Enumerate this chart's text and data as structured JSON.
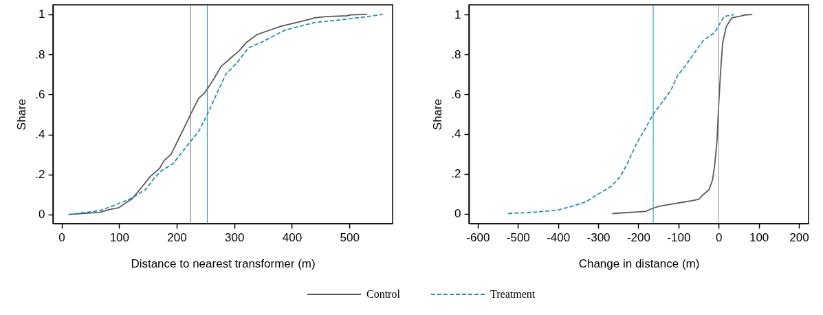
{
  "chart_data": [
    {
      "type": "line",
      "xlabel": "Distance to nearest transformer (m)",
      "ylabel": "Share",
      "legend": "bottom",
      "xlim": [
        -15,
        575
      ],
      "xticks": [
        0,
        100,
        200,
        300,
        400,
        500
      ],
      "ylim": [
        -0.045,
        1.048
      ],
      "yticks": [
        {
          "value": 0,
          "label": "0"
        },
        {
          "value": 0.2,
          "label": ".2"
        },
        {
          "value": 0.4,
          "label": ".4"
        },
        {
          "value": 0.6,
          "label": ".6"
        },
        {
          "value": 0.8,
          "label": ".8"
        },
        {
          "value": 1,
          "label": "1"
        }
      ],
      "ref_lines": [
        {
          "axis": "x",
          "value": 224,
          "color": "#707070"
        },
        {
          "axis": "x",
          "value": 253,
          "color": "#1a8fc0"
        }
      ],
      "series": [
        {
          "name": "Control",
          "color": "#5a5a5a",
          "line_style": "solid",
          "x": [
            12,
            67,
            83,
            99,
            123,
            143,
            154,
            170,
            178,
            190,
            202,
            214,
            224,
            238,
            249,
            265,
            277,
            293,
            309,
            321,
            340,
            360,
            380,
            400,
            420,
            440,
            459,
            495,
            503,
            531
          ],
          "values": [
            0,
            0.011,
            0.025,
            0.034,
            0.08,
            0.15,
            0.19,
            0.23,
            0.27,
            0.3,
            0.37,
            0.44,
            0.5,
            0.58,
            0.61,
            0.68,
            0.74,
            0.78,
            0.82,
            0.86,
            0.9,
            0.92,
            0.94,
            0.954,
            0.968,
            0.983,
            0.989,
            0.993,
            0.998,
            1
          ]
        },
        {
          "name": "Treatment",
          "color": "#1a8fc0",
          "line_style": "dashed",
          "x": [
            12,
            67,
            91,
            123,
            147,
            162,
            174,
            194,
            206,
            222,
            238,
            253,
            269,
            285,
            305,
            325,
            348,
            388,
            440,
            479,
            531,
            558
          ],
          "values": [
            0,
            0.02,
            0.045,
            0.083,
            0.128,
            0.186,
            0.22,
            0.255,
            0.3,
            0.358,
            0.415,
            0.5,
            0.6,
            0.7,
            0.76,
            0.834,
            0.862,
            0.922,
            0.96,
            0.971,
            0.989,
            1
          ]
        }
      ]
    },
    {
      "type": "line",
      "xlabel": "Change in distance (m)",
      "ylabel": "Share",
      "legend": "bottom",
      "xlim": [
        -622,
        224
      ],
      "xticks": [
        -600,
        -500,
        -400,
        -300,
        -200,
        -100,
        0,
        100,
        200
      ],
      "ylim": [
        -0.049,
        1.049
      ],
      "yticks": [
        {
          "value": 0,
          "label": "0"
        },
        {
          "value": 0.2,
          "label": ".2"
        },
        {
          "value": 0.4,
          "label": ".4"
        },
        {
          "value": 0.6,
          "label": ".6"
        },
        {
          "value": 0.8,
          "label": ".8"
        },
        {
          "value": 1,
          "label": "1"
        }
      ],
      "ref_lines": [
        {
          "axis": "x",
          "value": -163,
          "color": "#1a8fc0"
        },
        {
          "axis": "x",
          "value": 0,
          "color": "#909090"
        }
      ],
      "series": [
        {
          "name": "Control",
          "color": "#5a5a5a",
          "line_style": "solid",
          "x": [
            -265,
            -182,
            -165,
            -148,
            -113,
            -90,
            -67,
            -50,
            -38,
            -24,
            -15,
            -10,
            -4,
            0,
            5,
            10,
            19,
            33,
            53,
            64,
            84
          ],
          "values": [
            0.001,
            0.012,
            0.027,
            0.038,
            0.05,
            0.058,
            0.065,
            0.072,
            0.097,
            0.12,
            0.172,
            0.242,
            0.37,
            0.544,
            0.72,
            0.858,
            0.94,
            0.984,
            0.992,
            0.998,
            1
          ]
        },
        {
          "name": "Treatment",
          "color": "#1a8fc0",
          "line_style": "dashed",
          "x": [
            -524,
            -481,
            -435,
            -400,
            -366,
            -331,
            -297,
            -268,
            -245,
            -228,
            -205,
            -182,
            -163,
            -142,
            -119,
            -102,
            -84,
            -61,
            -38,
            -10,
            13,
            39
          ],
          "values": [
            0.002,
            0.005,
            0.012,
            0.019,
            0.037,
            0.06,
            0.102,
            0.137,
            0.186,
            0.25,
            0.35,
            0.43,
            0.5,
            0.556,
            0.62,
            0.695,
            0.74,
            0.806,
            0.87,
            0.91,
            0.99,
            1
          ]
        }
      ]
    }
  ]
}
